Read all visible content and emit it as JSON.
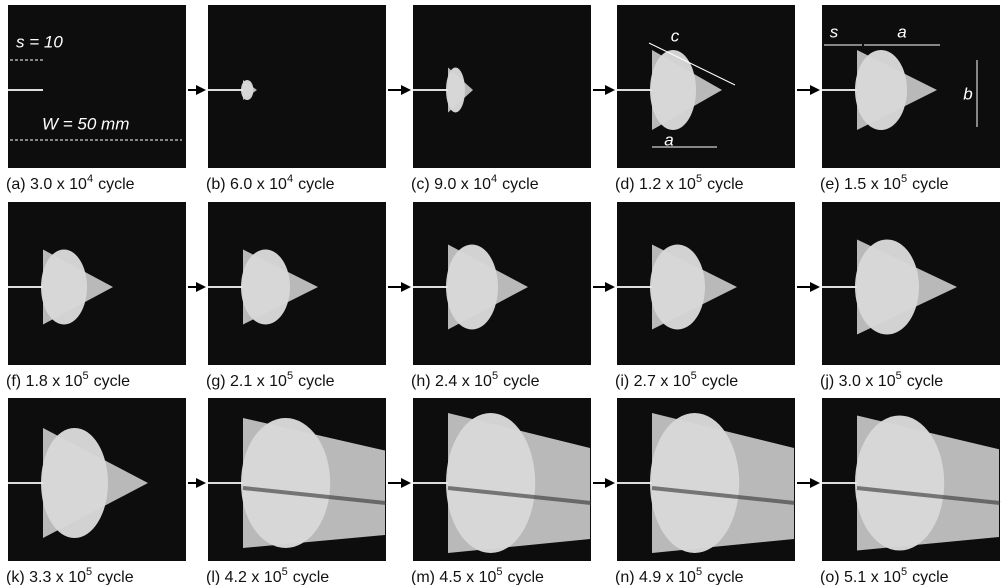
{
  "panels": [
    {
      "prefix": "(a) 3.0 x 10",
      "exponent": "4",
      "suffix": "cycle",
      "annotations": [
        "s = 10",
        "W = 50 mm"
      ]
    },
    {
      "prefix": "(b) 6.0 x 10",
      "exponent": "4",
      "suffix": "cycle"
    },
    {
      "prefix": "(c) 9.0 x 10",
      "exponent": "4",
      "suffix": "cycle"
    },
    {
      "prefix": "(d) 1.2 x 10",
      "exponent": "5",
      "suffix": "cycle",
      "annotations": [
        "c",
        "a"
      ]
    },
    {
      "prefix": "(e) 1.5 x 10",
      "exponent": "5",
      "suffix": "cycle",
      "annotations": [
        "s",
        "a",
        "b"
      ]
    },
    {
      "prefix": "(f) 1.8 x 10",
      "exponent": "5",
      "suffix": "cycle"
    },
    {
      "prefix": "(g) 2.1 x 10",
      "exponent": "5",
      "suffix": "cycle"
    },
    {
      "prefix": "(h) 2.4 x 10",
      "exponent": "5",
      "suffix": "cycle"
    },
    {
      "prefix": "(i) 2.7 x 10",
      "exponent": "5",
      "suffix": "cycle"
    },
    {
      "prefix": "(j) 3.0 x 10",
      "exponent": "5",
      "suffix": "cycle"
    },
    {
      "prefix": "(k) 3.3 x 10",
      "exponent": "5",
      "suffix": "cycle"
    },
    {
      "prefix": "(l) 4.2 x 10",
      "exponent": "5",
      "suffix": "cycle"
    },
    {
      "prefix": "(m) 4.5 x 10",
      "exponent": "5",
      "suffix": "cycle"
    },
    {
      "prefix": "(n) 4.9 x 10",
      "exponent": "5",
      "suffix": "cycle"
    },
    {
      "prefix": "(o) 5.1 x 10",
      "exponent": "5",
      "suffix": "cycle"
    }
  ]
}
